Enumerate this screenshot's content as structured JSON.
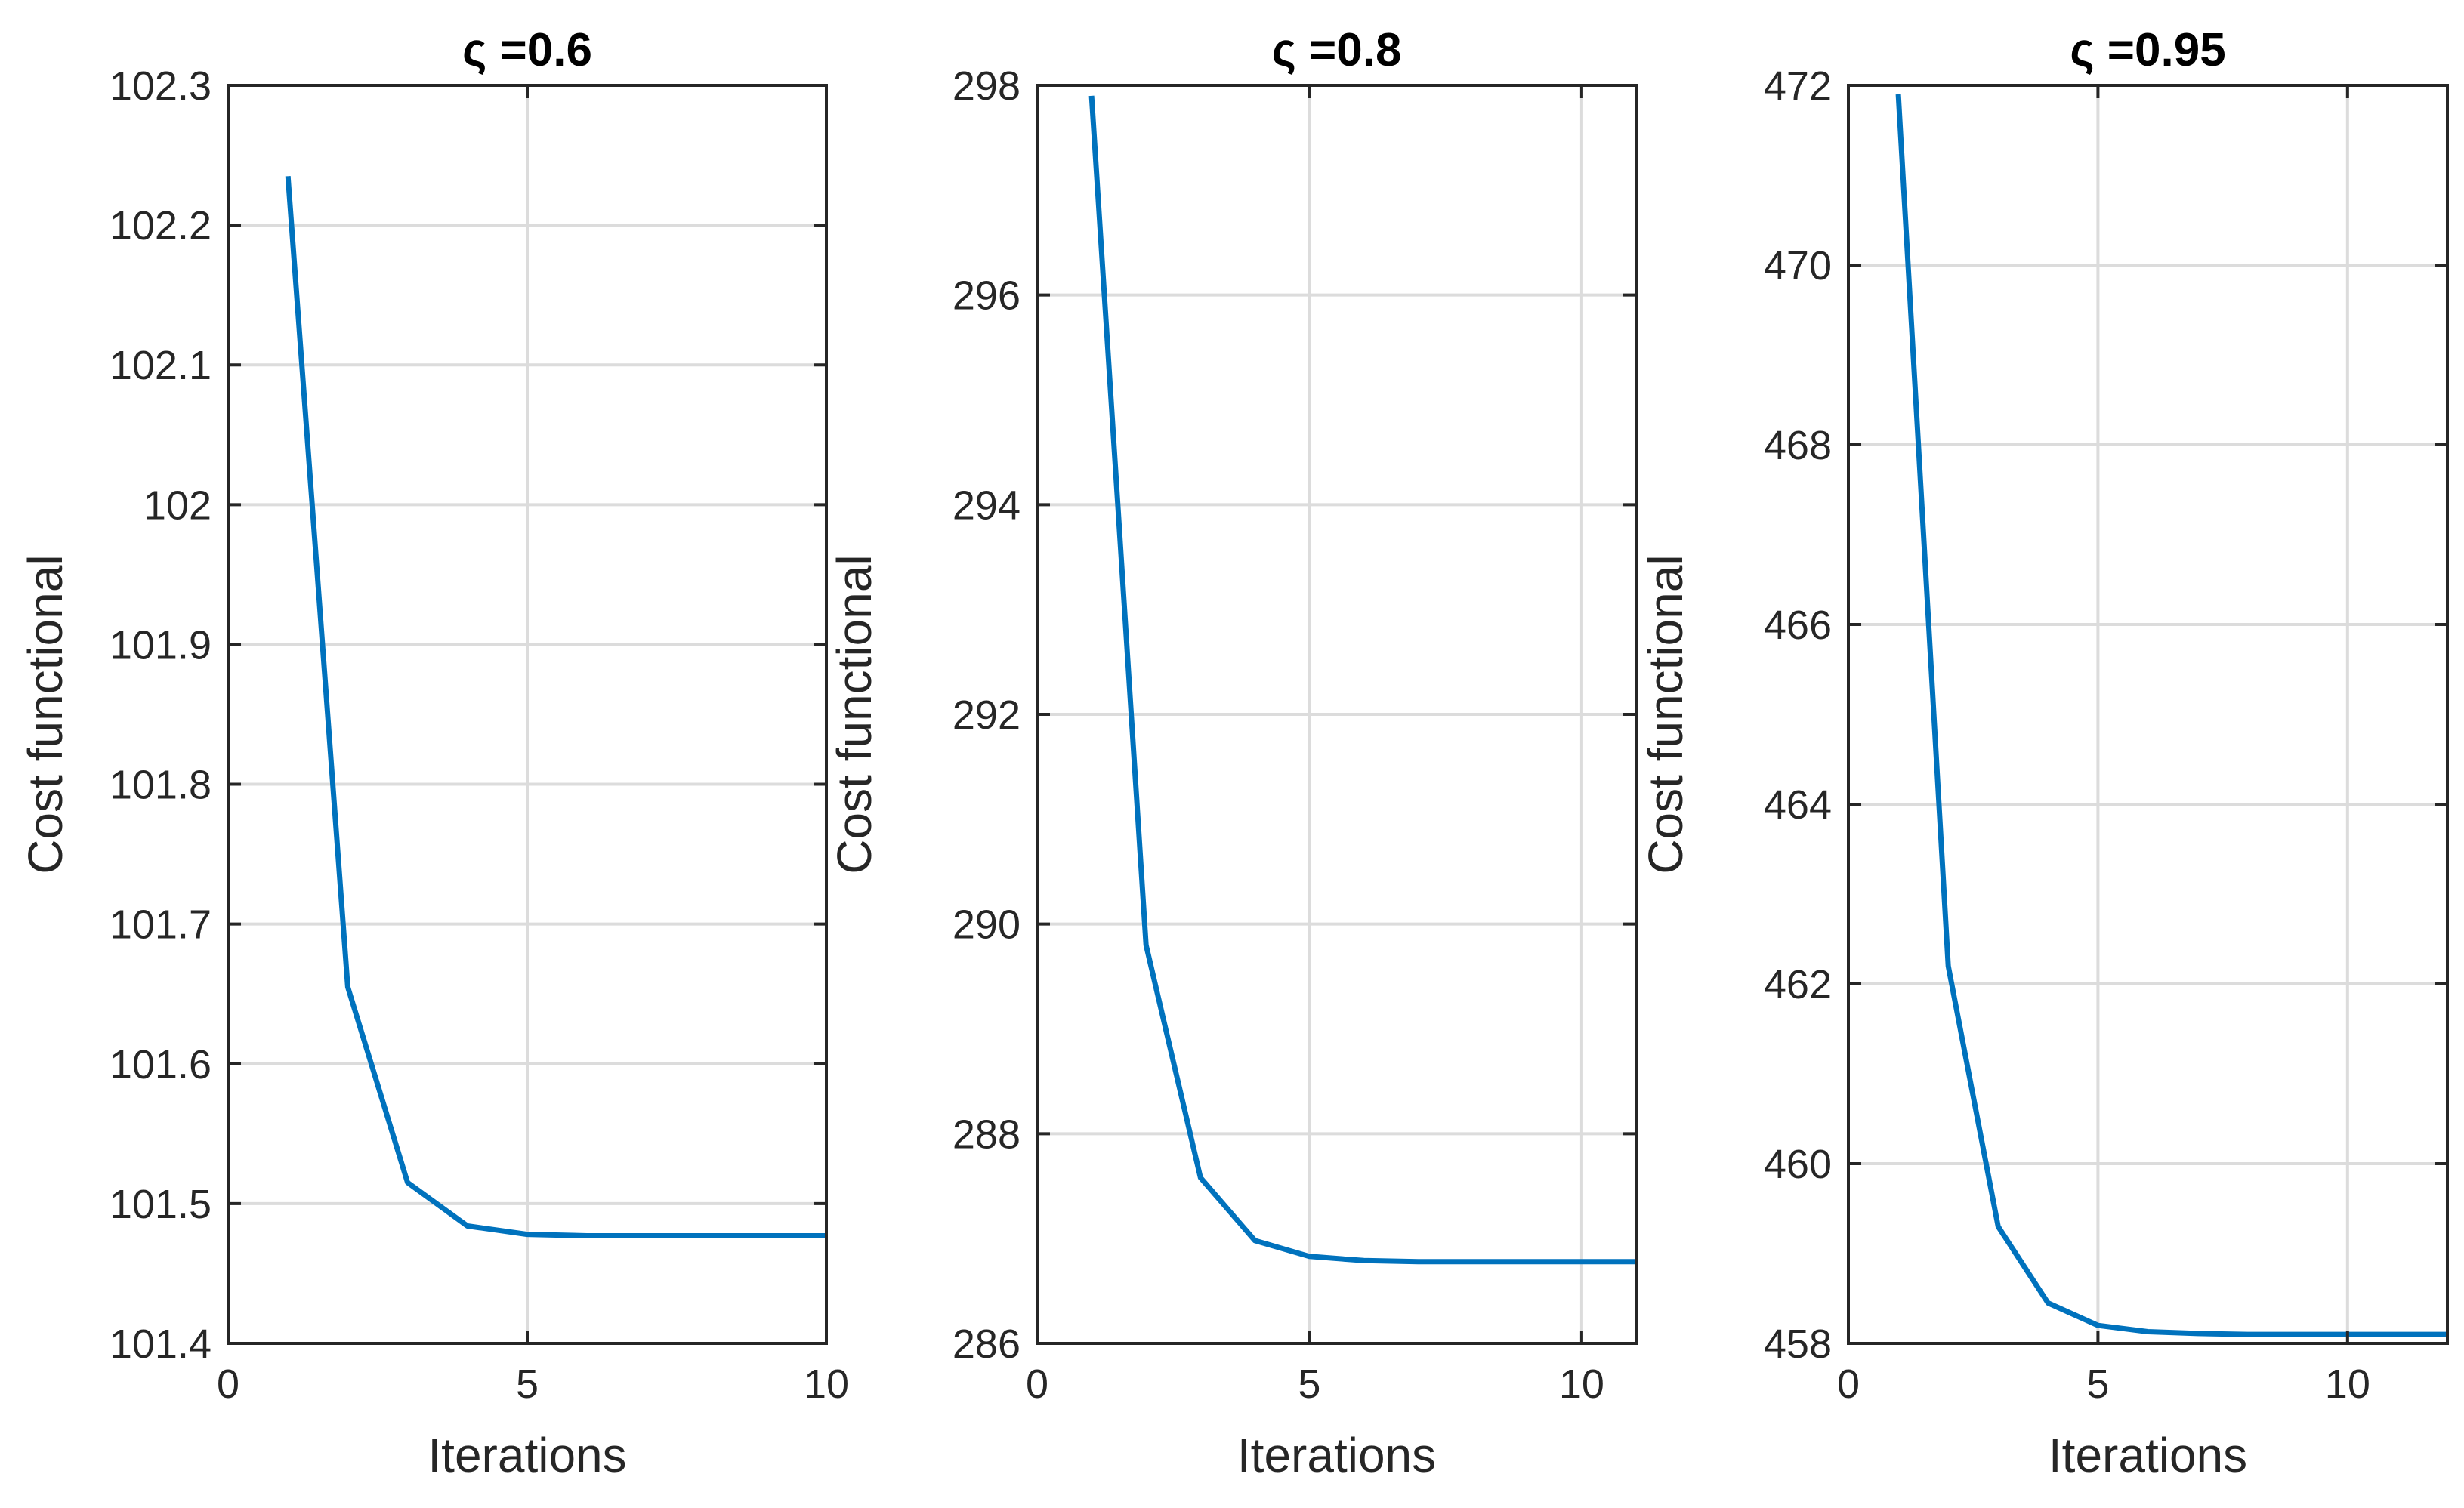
{
  "colors": {
    "line": "#0072BD",
    "grid": "#dcdcdc",
    "axis": "#262626",
    "background": "#ffffff"
  },
  "chart_data": [
    {
      "type": "line",
      "title": "ς =0.6",
      "xlabel": "Iterations",
      "ylabel": "Cost functional",
      "xlim": [
        0,
        10
      ],
      "ylim": [
        101.4,
        102.3
      ],
      "xticks": [
        0,
        5,
        10
      ],
      "xtick_labels": [
        "0",
        "5",
        "10"
      ],
      "yticks": [
        101.4,
        101.5,
        101.6,
        101.7,
        101.8,
        101.9,
        102.0,
        102.1,
        102.2,
        102.3
      ],
      "ytick_labels": [
        "101.4",
        "101.5",
        "101.6",
        "101.7",
        "101.8",
        "101.9",
        "102",
        "102.1",
        "102.2",
        "102.3"
      ],
      "grid": true,
      "series": [
        {
          "x": [
            1,
            2,
            3,
            4,
            5,
            6,
            7,
            8,
            9,
            10
          ],
          "values": [
            102.235,
            101.655,
            101.515,
            101.484,
            101.478,
            101.477,
            101.477,
            101.477,
            101.477,
            101.477
          ]
        }
      ]
    },
    {
      "type": "line",
      "title": "ς =0.8",
      "xlabel": "Iterations",
      "ylabel": "Cost functional",
      "xlim": [
        0,
        11
      ],
      "ylim": [
        286,
        298
      ],
      "xticks": [
        0,
        5,
        10
      ],
      "xtick_labels": [
        "0",
        "5",
        "10"
      ],
      "yticks": [
        286,
        288,
        290,
        292,
        294,
        296,
        298
      ],
      "ytick_labels": [
        "286",
        "288",
        "290",
        "292",
        "294",
        "296",
        "298"
      ],
      "grid": true,
      "series": [
        {
          "x": [
            1,
            2,
            3,
            4,
            5,
            6,
            7,
            8,
            9,
            10,
            11
          ],
          "values": [
            297.9,
            289.8,
            287.58,
            286.98,
            286.83,
            286.79,
            286.78,
            286.78,
            286.78,
            286.78,
            286.78
          ]
        }
      ]
    },
    {
      "type": "line",
      "title": "ς =0.95",
      "xlabel": "Iterations",
      "ylabel": "Cost functional",
      "xlim": [
        0,
        12
      ],
      "ylim": [
        458,
        472
      ],
      "xticks": [
        0,
        5,
        10
      ],
      "xtick_labels": [
        "0",
        "5",
        "10"
      ],
      "yticks": [
        458,
        460,
        462,
        464,
        466,
        468,
        470,
        472
      ],
      "ytick_labels": [
        "458",
        "460",
        "462",
        "464",
        "466",
        "468",
        "470",
        "472"
      ],
      "grid": true,
      "series": [
        {
          "x": [
            1,
            2,
            3,
            4,
            5,
            6,
            7,
            8,
            9,
            10,
            11,
            12
          ],
          "values": [
            471.9,
            462.2,
            459.3,
            458.45,
            458.2,
            458.13,
            458.11,
            458.1,
            458.1,
            458.1,
            458.1,
            458.1
          ]
        }
      ]
    }
  ]
}
